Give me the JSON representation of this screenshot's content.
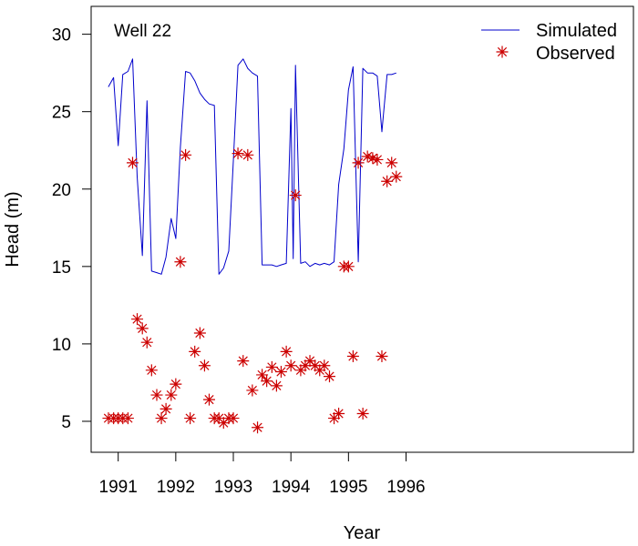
{
  "chart_data": {
    "type": "line",
    "annotation": "Well 22",
    "xlabel": "Year",
    "ylabel": "Head (m)",
    "xlim": [
      1990.53,
      1999.95
    ],
    "ylim": [
      3.0,
      31.8
    ],
    "x_ticks": [
      1991,
      1992,
      1993,
      1994,
      1995,
      1996
    ],
    "x_tick_labels": [
      "1991",
      "1992",
      "1993",
      "1994",
      "1995",
      "1996"
    ],
    "y_ticks": [
      5,
      10,
      15,
      20,
      25,
      30
    ],
    "y_tick_labels": [
      "5",
      "10",
      "15",
      "20",
      "25",
      "30"
    ],
    "legend": {
      "position": "top-right",
      "entries": [
        {
          "label": "Simulated",
          "kind": "line",
          "color": "#0000cc"
        },
        {
          "label": "Observed",
          "kind": "star",
          "color": "#cc0000"
        }
      ]
    },
    "series": [
      {
        "name": "Simulated",
        "kind": "line",
        "color": "#0000cc",
        "x": [
          1990.83,
          1990.92,
          1991.0,
          1991.08,
          1991.17,
          1991.25,
          1991.33,
          1991.42,
          1991.5,
          1991.58,
          1991.67,
          1991.75,
          1991.83,
          1991.92,
          1992.0,
          1992.08,
          1992.17,
          1992.25,
          1992.33,
          1992.42,
          1992.5,
          1992.58,
          1992.67,
          1992.75,
          1992.83,
          1992.92,
          1993.0,
          1993.08,
          1993.17,
          1993.25,
          1993.33,
          1993.42,
          1993.5,
          1993.58,
          1993.67,
          1993.75,
          1993.83,
          1993.92,
          1994.0,
          1994.04,
          1994.08,
          1994.17,
          1994.25,
          1994.33,
          1994.42,
          1994.5,
          1994.58,
          1994.67,
          1994.75,
          1994.83,
          1994.92,
          1995.0,
          1995.08,
          1995.17,
          1995.25,
          1995.33,
          1995.42,
          1995.5,
          1995.58,
          1995.67,
          1995.75,
          1995.83
        ],
        "y": [
          26.6,
          27.2,
          22.8,
          27.4,
          27.6,
          28.4,
          20.8,
          15.7,
          25.7,
          14.7,
          14.6,
          14.5,
          15.6,
          18.1,
          16.8,
          22.7,
          27.6,
          27.5,
          27.0,
          26.2,
          25.8,
          25.5,
          25.4,
          14.5,
          14.9,
          16.0,
          21.8,
          28.0,
          28.4,
          27.8,
          27.5,
          27.3,
          15.1,
          15.1,
          15.1,
          15.0,
          15.1,
          15.2,
          25.2,
          15.5,
          28.0,
          15.2,
          15.3,
          15.0,
          15.2,
          15.1,
          15.2,
          15.1,
          15.3,
          20.3,
          22.6,
          26.4,
          27.9,
          15.3,
          27.8,
          27.5,
          27.5,
          27.3,
          23.7,
          27.4,
          27.4,
          27.5
        ]
      },
      {
        "name": "Observed",
        "kind": "scatter",
        "marker": "star",
        "color": "#cc0000",
        "x": [
          1990.83,
          1990.92,
          1991.0,
          1991.08,
          1991.17,
          1991.25,
          1991.33,
          1991.42,
          1991.5,
          1991.58,
          1991.67,
          1991.75,
          1991.83,
          1991.92,
          1992.0,
          1992.08,
          1992.17,
          1992.25,
          1992.33,
          1992.42,
          1992.5,
          1992.58,
          1992.67,
          1992.75,
          1992.83,
          1992.92,
          1993.0,
          1993.08,
          1993.17,
          1993.25,
          1993.33,
          1993.42,
          1993.5,
          1993.58,
          1993.67,
          1993.75,
          1993.83,
          1993.92,
          1994.0,
          1994.08,
          1994.17,
          1994.25,
          1994.33,
          1994.42,
          1994.5,
          1994.58,
          1994.67,
          1994.75,
          1994.83,
          1994.92,
          1995.0,
          1995.08,
          1995.17,
          1995.25,
          1995.33,
          1995.42,
          1995.5,
          1995.58,
          1995.67,
          1995.75,
          1995.83
        ],
        "y": [
          5.2,
          5.2,
          5.2,
          5.2,
          5.2,
          21.7,
          11.6,
          11.0,
          10.1,
          8.3,
          6.7,
          5.2,
          5.8,
          6.7,
          7.4,
          15.3,
          22.2,
          5.2,
          9.5,
          10.7,
          8.6,
          6.4,
          5.2,
          5.2,
          4.9,
          5.2,
          5.2,
          22.3,
          8.9,
          22.2,
          7.0,
          4.6,
          8.0,
          7.6,
          8.5,
          7.3,
          8.2,
          9.5,
          8.6,
          19.6,
          8.3,
          8.6,
          8.9,
          8.6,
          8.3,
          8.6,
          7.9,
          5.2,
          5.5,
          15.0,
          15.0,
          9.2,
          21.7,
          5.5,
          22.1,
          22.0,
          21.9,
          9.2,
          20.5,
          21.7,
          20.8
        ]
      }
    ]
  }
}
